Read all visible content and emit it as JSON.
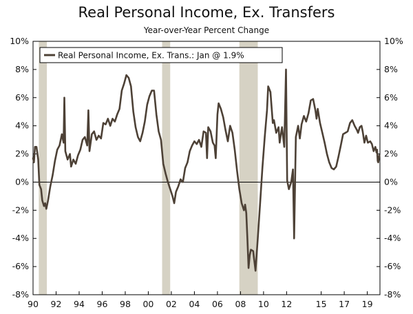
{
  "chart_data": {
    "type": "line",
    "title": "Real Personal Income, Ex. Transfers",
    "subtitle": "Year-over-Year Percent Change",
    "xlabel": "",
    "ylabel": "",
    "x_range": [
      1990,
      2020.1
    ],
    "ylim": [
      -8,
      10
    ],
    "y_ticks": [
      -8,
      -6,
      -4,
      -2,
      0,
      2,
      4,
      6,
      8,
      10
    ],
    "y_tick_labels": [
      "-8%",
      "-6%",
      "-4%",
      "-2%",
      "0%",
      "2%",
      "4%",
      "6%",
      "8%",
      "10%"
    ],
    "x_ticks": [
      1990,
      1992,
      1994,
      1996,
      1998,
      2000,
      2002,
      2004,
      2006,
      2008,
      2010,
      2012,
      2015,
      2017,
      2019
    ],
    "x_tick_labels": [
      "90",
      "92",
      "94",
      "96",
      "98",
      "00",
      "02",
      "04",
      "06",
      "08",
      "10",
      "12",
      "15",
      "17",
      "19"
    ],
    "recessions": [
      [
        1990.5,
        1991.2
      ],
      [
        2001.2,
        2001.9
      ],
      [
        2007.9,
        2009.5
      ]
    ],
    "grid": false,
    "legend_position": "top-left",
    "colors": {
      "line": "#4d4136",
      "recession": "#d6d2c4",
      "axis": "#000000"
    },
    "series": [
      {
        "name": "Real Personal Income, Ex. Trans.: Jan @ 1.9%",
        "points": [
          [
            1990.0,
            1.7
          ],
          [
            1990.08,
            1.4
          ],
          [
            1990.17,
            2.5
          ],
          [
            1990.3,
            2.5
          ],
          [
            1990.45,
            1.6
          ],
          [
            1990.55,
            -0.2
          ],
          [
            1990.7,
            -0.5
          ],
          [
            1990.8,
            -1.3
          ],
          [
            1990.95,
            -1.7
          ],
          [
            1991.05,
            -1.5
          ],
          [
            1991.15,
            -1.9
          ],
          [
            1991.3,
            -1.3
          ],
          [
            1991.5,
            -0.3
          ],
          [
            1991.7,
            0.5
          ],
          [
            1991.9,
            1.5
          ],
          [
            1992.1,
            2.3
          ],
          [
            1992.3,
            2.6
          ],
          [
            1992.5,
            3.4
          ],
          [
            1992.65,
            2.8
          ],
          [
            1992.72,
            6.0
          ],
          [
            1992.8,
            2.2
          ],
          [
            1993.0,
            1.6
          ],
          [
            1993.2,
            2.0
          ],
          [
            1993.3,
            1.1
          ],
          [
            1993.5,
            1.6
          ],
          [
            1993.7,
            1.3
          ],
          [
            1993.9,
            1.9
          ],
          [
            1994.1,
            2.3
          ],
          [
            1994.3,
            3.0
          ],
          [
            1994.5,
            3.2
          ],
          [
            1994.7,
            2.6
          ],
          [
            1994.8,
            5.1
          ],
          [
            1994.9,
            2.2
          ],
          [
            1995.1,
            3.4
          ],
          [
            1995.3,
            3.6
          ],
          [
            1995.5,
            3.0
          ],
          [
            1995.7,
            3.3
          ],
          [
            1995.9,
            3.1
          ],
          [
            1996.1,
            4.2
          ],
          [
            1996.3,
            4.1
          ],
          [
            1996.5,
            4.5
          ],
          [
            1996.7,
            4.0
          ],
          [
            1996.9,
            4.5
          ],
          [
            1997.1,
            4.3
          ],
          [
            1997.3,
            4.8
          ],
          [
            1997.5,
            5.2
          ],
          [
            1997.7,
            6.5
          ],
          [
            1997.9,
            7.0
          ],
          [
            1998.1,
            7.6
          ],
          [
            1998.3,
            7.4
          ],
          [
            1998.5,
            6.8
          ],
          [
            1998.7,
            5.0
          ],
          [
            1998.9,
            3.9
          ],
          [
            1999.1,
            3.2
          ],
          [
            1999.3,
            2.9
          ],
          [
            1999.5,
            3.5
          ],
          [
            1999.7,
            4.3
          ],
          [
            1999.9,
            5.5
          ],
          [
            2000.1,
            6.1
          ],
          [
            2000.3,
            6.5
          ],
          [
            2000.5,
            6.5
          ],
          [
            2000.7,
            4.8
          ],
          [
            2000.9,
            3.6
          ],
          [
            2001.1,
            3.0
          ],
          [
            2001.3,
            1.3
          ],
          [
            2001.5,
            0.6
          ],
          [
            2001.7,
            0.0
          ],
          [
            2001.9,
            -0.5
          ],
          [
            2002.1,
            -1.0
          ],
          [
            2002.25,
            -1.5
          ],
          [
            2002.4,
            -0.7
          ],
          [
            2002.6,
            -0.3
          ],
          [
            2002.8,
            0.2
          ],
          [
            2003.0,
            0.0
          ],
          [
            2003.2,
            1.0
          ],
          [
            2003.4,
            1.4
          ],
          [
            2003.6,
            2.2
          ],
          [
            2003.8,
            2.6
          ],
          [
            2004.0,
            2.9
          ],
          [
            2004.2,
            2.7
          ],
          [
            2004.4,
            3.0
          ],
          [
            2004.6,
            2.5
          ],
          [
            2004.8,
            3.6
          ],
          [
            2005.0,
            3.5
          ],
          [
            2005.1,
            1.7
          ],
          [
            2005.2,
            3.9
          ],
          [
            2005.4,
            3.6
          ],
          [
            2005.6,
            2.8
          ],
          [
            2005.75,
            2.6
          ],
          [
            2005.85,
            1.7
          ],
          [
            2006.0,
            4.8
          ],
          [
            2006.1,
            5.6
          ],
          [
            2006.3,
            5.2
          ],
          [
            2006.5,
            4.6
          ],
          [
            2006.7,
            3.7
          ],
          [
            2006.9,
            2.9
          ],
          [
            2007.1,
            4.0
          ],
          [
            2007.3,
            3.5
          ],
          [
            2007.5,
            2.3
          ],
          [
            2007.7,
            0.8
          ],
          [
            2007.9,
            -0.5
          ],
          [
            2008.1,
            -1.5
          ],
          [
            2008.3,
            -2.0
          ],
          [
            2008.4,
            -1.6
          ],
          [
            2008.5,
            -2.2
          ],
          [
            2008.6,
            -4.0
          ],
          [
            2008.7,
            -6.1
          ],
          [
            2008.8,
            -5.2
          ],
          [
            2008.9,
            -4.8
          ],
          [
            2009.1,
            -4.9
          ],
          [
            2009.3,
            -6.3
          ],
          [
            2009.5,
            -4.0
          ],
          [
            2009.7,
            -1.5
          ],
          [
            2009.9,
            1.0
          ],
          [
            2010.1,
            3.2
          ],
          [
            2010.3,
            5.1
          ],
          [
            2010.4,
            6.8
          ],
          [
            2010.6,
            6.4
          ],
          [
            2010.8,
            4.2
          ],
          [
            2010.9,
            4.4
          ],
          [
            2011.1,
            3.5
          ],
          [
            2011.3,
            3.9
          ],
          [
            2011.4,
            2.8
          ],
          [
            2011.6,
            3.9
          ],
          [
            2011.8,
            2.5
          ],
          [
            2011.95,
            8.0
          ],
          [
            2012.05,
            0.1
          ],
          [
            2012.2,
            -0.5
          ],
          [
            2012.4,
            0.0
          ],
          [
            2012.55,
            0.9
          ],
          [
            2012.65,
            -4.0
          ],
          [
            2012.8,
            3.2
          ],
          [
            2013.0,
            4.0
          ],
          [
            2013.15,
            3.1
          ],
          [
            2013.3,
            4.1
          ],
          [
            2013.5,
            4.7
          ],
          [
            2013.7,
            4.3
          ],
          [
            2013.9,
            4.9
          ],
          [
            2014.1,
            5.8
          ],
          [
            2014.3,
            5.9
          ],
          [
            2014.5,
            5.1
          ],
          [
            2014.6,
            4.5
          ],
          [
            2014.7,
            5.2
          ],
          [
            2014.9,
            4.2
          ],
          [
            2015.1,
            3.5
          ],
          [
            2015.3,
            2.8
          ],
          [
            2015.5,
            2.0
          ],
          [
            2015.7,
            1.4
          ],
          [
            2015.9,
            1.0
          ],
          [
            2016.1,
            0.9
          ],
          [
            2016.3,
            1.1
          ],
          [
            2016.5,
            1.8
          ],
          [
            2016.7,
            2.6
          ],
          [
            2016.9,
            3.4
          ],
          [
            2017.1,
            3.5
          ],
          [
            2017.3,
            3.6
          ],
          [
            2017.5,
            4.2
          ],
          [
            2017.7,
            4.4
          ],
          [
            2017.9,
            4.0
          ],
          [
            2018.1,
            3.7
          ],
          [
            2018.2,
            3.5
          ],
          [
            2018.35,
            3.9
          ],
          [
            2018.5,
            4.0
          ],
          [
            2018.6,
            3.6
          ],
          [
            2018.75,
            2.8
          ],
          [
            2018.9,
            3.3
          ],
          [
            2019.05,
            2.8
          ],
          [
            2019.25,
            2.9
          ],
          [
            2019.4,
            2.7
          ],
          [
            2019.55,
            2.2
          ],
          [
            2019.7,
            2.5
          ],
          [
            2019.8,
            2.1
          ],
          [
            2019.85,
            2.3
          ],
          [
            2019.9,
            1.5
          ],
          [
            2019.95,
            1.4
          ],
          [
            2020.05,
            1.9
          ]
        ]
      }
    ]
  }
}
